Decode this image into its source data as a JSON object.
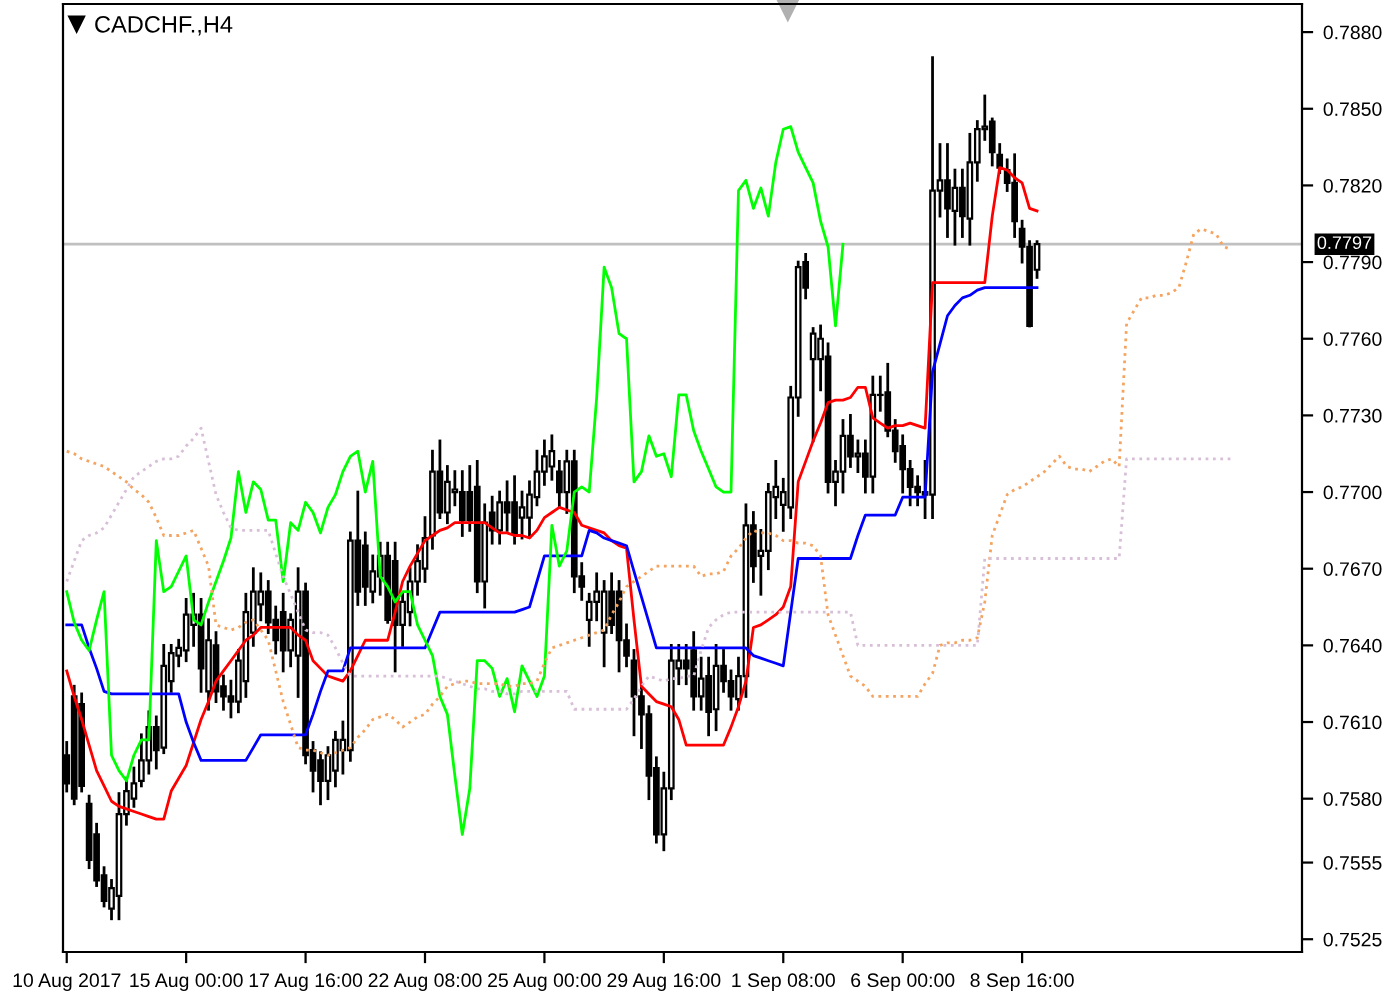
{
  "chart_data": {
    "type": "candlestick",
    "title": "CADCHF.,H4",
    "categories": [
      "10 Aug 2017",
      null,
      null,
      null,
      null,
      null,
      null,
      null,
      null,
      null,
      null,
      null,
      null,
      null,
      null,
      null,
      "15 Aug 00:00",
      null,
      null,
      null,
      null,
      null,
      null,
      null,
      null,
      null,
      null,
      null,
      null,
      null,
      null,
      null,
      "17 Aug 16:00",
      null,
      null,
      null,
      null,
      null,
      null,
      null,
      null,
      null,
      null,
      null,
      null,
      null,
      null,
      null,
      "22 Aug 08:00",
      null,
      null,
      null,
      null,
      null,
      null,
      null,
      null,
      null,
      null,
      null,
      null,
      null,
      null,
      null,
      "25 Aug 00:00",
      null,
      null,
      null,
      null,
      null,
      null,
      null,
      null,
      null,
      null,
      null,
      null,
      null,
      null,
      null,
      "29 Aug 16:00",
      null,
      null,
      null,
      null,
      null,
      null,
      null,
      null,
      null,
      null,
      null,
      null,
      null,
      null,
      null,
      "1 Sep 08:00",
      null,
      null,
      null,
      null,
      null,
      null,
      null,
      null,
      null,
      null,
      null,
      null,
      null,
      null,
      null,
      "6 Sep 00:00",
      null,
      null,
      null,
      null,
      null,
      null,
      null,
      null,
      null,
      null,
      null,
      null,
      null,
      null,
      null,
      "8 Sep 16:00",
      null,
      null,
      null,
      null,
      null,
      null,
      null,
      null,
      null,
      null,
      null,
      null,
      null,
      null,
      null,
      null,
      null,
      null,
      null,
      null,
      null,
      null,
      null,
      null,
      null,
      null,
      null,
      null,
      null,
      null,
      null,
      null,
      null,
      null,
      null,
      null,
      null
    ],
    "ohlc": [
      [
        0.7597,
        0.7602,
        0.7583,
        0.7586
      ],
      [
        0.762,
        0.7624,
        0.7578,
        0.758
      ],
      [
        0.7617,
        0.7621,
        0.7583,
        0.7585
      ],
      [
        0.7578,
        0.7581,
        0.7553,
        0.7556
      ],
      [
        0.7566,
        0.757,
        0.7546,
        0.7548
      ],
      [
        0.755,
        0.7553,
        0.7538,
        0.754
      ],
      [
        0.7537,
        0.7548,
        0.7533,
        0.7545
      ],
      [
        0.7542,
        0.7582,
        0.7533,
        0.7574
      ],
      [
        0.7574,
        0.7588,
        0.757,
        0.7583
      ],
      [
        0.758,
        0.7592,
        0.7577,
        0.7586
      ],
      [
        0.7587,
        0.7605,
        0.7585,
        0.7595
      ],
      [
        0.7595,
        0.7614,
        0.759,
        0.7608
      ],
      [
        0.7608,
        0.7612,
        0.7592,
        0.7599
      ],
      [
        0.76,
        0.764,
        0.7598,
        0.7632
      ],
      [
        0.7626,
        0.764,
        0.7622,
        0.7637
      ],
      [
        0.7636,
        0.7642,
        0.7632,
        0.7639
      ],
      [
        0.7638,
        0.7658,
        0.7634,
        0.7652
      ],
      [
        0.7648,
        0.766,
        0.764,
        0.7652
      ],
      [
        0.7652,
        0.7658,
        0.7622,
        0.7631
      ],
      [
        0.7622,
        0.765,
        0.7615,
        0.7642
      ],
      [
        0.764,
        0.7645,
        0.7618,
        0.7622
      ],
      [
        0.7624,
        0.7628,
        0.7615,
        0.762
      ],
      [
        0.762,
        0.7626,
        0.7612,
        0.7618
      ],
      [
        0.7618,
        0.7638,
        0.7614,
        0.7634
      ],
      [
        0.7626,
        0.766,
        0.762,
        0.7653
      ],
      [
        0.7645,
        0.767,
        0.764,
        0.7661
      ],
      [
        0.7656,
        0.7668,
        0.765,
        0.7661
      ],
      [
        0.7661,
        0.7665,
        0.7645,
        0.7649
      ],
      [
        0.765,
        0.7655,
        0.7637,
        0.7642
      ],
      [
        0.7653,
        0.766,
        0.763,
        0.7638
      ],
      [
        0.7638,
        0.7652,
        0.7632,
        0.765
      ],
      [
        0.7636,
        0.767,
        0.762,
        0.7661
      ],
      [
        0.7661,
        0.7664,
        0.7594,
        0.7597
      ],
      [
        0.7599,
        0.7602,
        0.7583,
        0.7591
      ],
      [
        0.7595,
        0.7598,
        0.7578,
        0.7587
      ],
      [
        0.7587,
        0.76,
        0.758,
        0.7597
      ],
      [
        0.7591,
        0.7606,
        0.7585,
        0.7603
      ],
      [
        0.7599,
        0.761,
        0.759,
        0.7603
      ],
      [
        0.7599,
        0.7684,
        0.7595,
        0.7681
      ],
      [
        0.7681,
        0.77,
        0.7656,
        0.7661
      ],
      [
        0.7679,
        0.7684,
        0.7656,
        0.7663
      ],
      [
        0.7661,
        0.7675,
        0.7657,
        0.7669
      ],
      [
        0.7667,
        0.768,
        0.766,
        0.7675
      ],
      [
        0.7675,
        0.768,
        0.7649,
        0.765
      ],
      [
        0.7673,
        0.768,
        0.763,
        0.7648
      ],
      [
        0.7648,
        0.766,
        0.764,
        0.7657
      ],
      [
        0.7653,
        0.767,
        0.7648,
        0.7665
      ],
      [
        0.7665,
        0.7679,
        0.766,
        0.7673
      ],
      [
        0.767,
        0.769,
        0.7665,
        0.7682
      ],
      [
        0.7683,
        0.7716,
        0.7678,
        0.7708
      ],
      [
        0.7708,
        0.772,
        0.769,
        0.7692
      ],
      [
        0.7692,
        0.771,
        0.7688,
        0.7704
      ],
      [
        0.77,
        0.7708,
        0.7695,
        0.7701
      ],
      [
        0.77,
        0.7708,
        0.7683,
        0.7689
      ],
      [
        0.77,
        0.771,
        0.7685,
        0.7689
      ],
      [
        0.7702,
        0.7712,
        0.7661,
        0.7665
      ],
      [
        0.7665,
        0.7695,
        0.7655,
        0.7688
      ],
      [
        0.7692,
        0.7698,
        0.768,
        0.7685
      ],
      [
        0.7685,
        0.77,
        0.768,
        0.7696
      ],
      [
        0.7696,
        0.7704,
        0.7685,
        0.7692
      ],
      [
        0.7696,
        0.7706,
        0.768,
        0.7684
      ],
      [
        0.769,
        0.77,
        0.7682,
        0.7694
      ],
      [
        0.769,
        0.7704,
        0.7683,
        0.7699
      ],
      [
        0.7698,
        0.7716,
        0.7695,
        0.7708
      ],
      [
        0.7708,
        0.772,
        0.7703,
        0.7714
      ],
      [
        0.771,
        0.7722,
        0.7705,
        0.7716
      ],
      [
        0.7708,
        0.7712,
        0.7694,
        0.77
      ],
      [
        0.77,
        0.7716,
        0.7692,
        0.7712
      ],
      [
        0.7712,
        0.7716,
        0.7661,
        0.7667
      ],
      [
        0.7667,
        0.7672,
        0.7658,
        0.7663
      ],
      [
        0.765,
        0.766,
        0.764,
        0.7657
      ],
      [
        0.7657,
        0.7668,
        0.765,
        0.7661
      ],
      [
        0.7645,
        0.7665,
        0.7632,
        0.7661
      ],
      [
        0.7661,
        0.7668,
        0.7645,
        0.7648
      ],
      [
        0.7661,
        0.7665,
        0.763,
        0.7642
      ],
      [
        0.7642,
        0.7648,
        0.7632,
        0.7636
      ],
      [
        0.7634,
        0.7638,
        0.7605,
        0.762
      ],
      [
        0.762,
        0.7625,
        0.76,
        0.7613
      ],
      [
        0.7613,
        0.7616,
        0.758,
        0.7589
      ],
      [
        0.7592,
        0.7596,
        0.7563,
        0.7566
      ],
      [
        0.7566,
        0.759,
        0.756,
        0.7584
      ],
      [
        0.7584,
        0.764,
        0.758,
        0.7634
      ],
      [
        0.7631,
        0.764,
        0.7625,
        0.7634
      ],
      [
        0.7634,
        0.764,
        0.7625,
        0.7631
      ],
      [
        0.7638,
        0.7645,
        0.7615,
        0.762
      ],
      [
        0.762,
        0.7635,
        0.7615,
        0.7627
      ],
      [
        0.7628,
        0.7635,
        0.7605,
        0.7614
      ],
      [
        0.7615,
        0.764,
        0.7607,
        0.7632
      ],
      [
        0.7632,
        0.7638,
        0.7622,
        0.7626
      ],
      [
        0.7626,
        0.763,
        0.7615,
        0.762
      ],
      [
        0.7619,
        0.7635,
        0.7615,
        0.7628
      ],
      [
        0.7628,
        0.7695,
        0.762,
        0.7687
      ],
      [
        0.7687,
        0.7692,
        0.7665,
        0.7671
      ],
      [
        0.7675,
        0.7685,
        0.766,
        0.7677
      ],
      [
        0.7677,
        0.7703,
        0.767,
        0.77
      ],
      [
        0.7698,
        0.7712,
        0.769,
        0.7702
      ],
      [
        0.7695,
        0.7705,
        0.7685,
        0.77
      ],
      [
        0.7694,
        0.7741,
        0.769,
        0.7737
      ],
      [
        0.7737,
        0.779,
        0.773,
        0.7788
      ],
      [
        0.779,
        0.7793,
        0.7776,
        0.778
      ],
      [
        0.7752,
        0.7764,
        0.772,
        0.7762
      ],
      [
        0.7752,
        0.7765,
        0.774,
        0.776
      ],
      [
        0.7753,
        0.7758,
        0.77,
        0.7704
      ],
      [
        0.7704,
        0.7712,
        0.7695,
        0.7708
      ],
      [
        0.7708,
        0.7728,
        0.77,
        0.7722
      ],
      [
        0.7722,
        0.773,
        0.771,
        0.7714
      ],
      [
        0.7714,
        0.772,
        0.7708,
        0.7715
      ],
      [
        0.7715,
        0.772,
        0.77,
        0.7706
      ],
      [
        0.7706,
        0.7745,
        0.77,
        0.7738
      ],
      [
        0.7738,
        0.7745,
        0.7732,
        0.7738
      ],
      [
        0.7739,
        0.775,
        0.7722,
        0.7724
      ],
      [
        0.7724,
        0.7728,
        0.7712,
        0.7716
      ],
      [
        0.7718,
        0.7722,
        0.77,
        0.7709
      ],
      [
        0.7709,
        0.7712,
        0.7695,
        0.7702
      ],
      [
        0.7702,
        0.7706,
        0.7695,
        0.77
      ],
      [
        0.7699,
        0.7712,
        0.769,
        0.77
      ],
      [
        0.7699,
        0.787,
        0.769,
        0.7818
      ],
      [
        0.7818,
        0.7836,
        0.7808,
        0.7822
      ],
      [
        0.7822,
        0.7836,
        0.78,
        0.7811
      ],
      [
        0.781,
        0.7826,
        0.7797,
        0.7819
      ],
      [
        0.7819,
        0.7826,
        0.78,
        0.7808
      ],
      [
        0.7807,
        0.784,
        0.7797,
        0.7829
      ],
      [
        0.7829,
        0.7845,
        0.7822,
        0.7842
      ],
      [
        0.7842,
        0.7855,
        0.7838,
        0.7843
      ],
      [
        0.7845,
        0.7846,
        0.7828,
        0.7833
      ],
      [
        0.7832,
        0.7836,
        0.7825,
        0.7827
      ],
      [
        0.7826,
        0.783,
        0.7818,
        0.7821
      ],
      [
        0.7821,
        0.7832,
        0.78,
        0.7806
      ],
      [
        0.7803,
        0.7806,
        0.779,
        0.7796
      ],
      [
        0.7796,
        0.7798,
        0.7765,
        0.7765
      ],
      [
        0.7787,
        0.7798,
        0.7784,
        0.7797
      ],
      null,
      null,
      null,
      null,
      null,
      null,
      null,
      null,
      null,
      null,
      null,
      null,
      null,
      null,
      null,
      null,
      null,
      null,
      null,
      null,
      null,
      null,
      null,
      null,
      null,
      null,
      null,
      null,
      null,
      null,
      null,
      null,
      null,
      null,
      null
    ],
    "series": [
      {
        "type": "line",
        "color": "#ff0000",
        "line_style": "solid",
        "values": [
          0.763,
          0.762,
          0.7611,
          0.7601,
          0.7591,
          0.7585,
          0.7579,
          0.7577,
          0.7576,
          0.7575,
          0.7574,
          0.7573,
          0.7572,
          0.7572,
          0.7583,
          0.7588,
          0.7593,
          0.7602,
          0.7611,
          0.7618,
          0.7626,
          0.763,
          0.7634,
          0.7638,
          0.7642,
          0.7644,
          0.7647,
          0.7647,
          0.7647,
          0.7647,
          0.7647,
          0.7644,
          0.7642,
          0.7634,
          0.7631,
          0.7628,
          0.7627,
          0.7626,
          0.763,
          0.7636,
          0.7642,
          0.7642,
          0.7642,
          0.7642,
          0.7653,
          0.7665,
          0.7671,
          0.7676,
          0.7681,
          0.7683,
          0.7685,
          0.7686,
          0.7688,
          0.7688,
          0.7688,
          0.7688,
          0.7688,
          0.7686,
          0.7684,
          0.7684,
          0.7683,
          0.7683,
          0.7682,
          0.7685,
          0.769,
          0.7692,
          0.7694,
          0.7693,
          0.7692,
          0.7687,
          0.7686,
          0.7685,
          0.7684,
          0.7681,
          0.7679,
          0.7678,
          0.765,
          0.7624,
          0.7621,
          0.7618,
          0.7617,
          0.7616,
          0.7611,
          0.7601,
          0.7601,
          0.7601,
          0.7601,
          0.7601,
          0.7601,
          0.7608,
          0.7616,
          0.7626,
          0.7647,
          0.7648,
          0.765,
          0.7652,
          0.7655,
          0.7663,
          0.7704,
          0.7712,
          0.772,
          0.7727,
          0.7735,
          0.7736,
          0.7736,
          0.7737,
          0.7741,
          0.7741,
          0.7729,
          0.7727,
          0.7725,
          0.7726,
          0.7726,
          0.7727,
          0.7726,
          0.7725,
          0.7782,
          0.7782,
          0.7782,
          0.7782,
          0.7782,
          0.7782,
          0.7782,
          0.7782,
          0.7808,
          0.7827,
          0.7826,
          0.7823,
          0.7821,
          0.7811,
          0.781,
          null,
          null,
          null,
          null,
          null,
          null,
          null,
          null,
          null,
          null,
          null,
          null,
          null,
          null,
          null,
          null,
          null,
          null,
          null,
          null,
          null,
          null,
          null,
          null,
          null,
          null,
          null,
          null,
          null,
          null,
          null,
          null,
          null,
          null,
          null
        ]
      },
      {
        "type": "line",
        "color": "#0000ff",
        "line_style": "solid",
        "values": [
          0.7648,
          0.7648,
          0.7648,
          0.7639,
          0.7631,
          0.7622,
          0.7621,
          0.7621,
          0.7621,
          0.7621,
          0.7621,
          0.7621,
          0.7621,
          0.7621,
          0.7621,
          0.7621,
          0.761,
          0.7602,
          0.7595,
          0.7595,
          0.7595,
          0.7595,
          0.7595,
          0.7595,
          0.7595,
          0.76,
          0.7605,
          0.7605,
          0.7605,
          0.7605,
          0.7605,
          0.7605,
          0.7605,
          0.7613,
          0.7622,
          0.763,
          0.763,
          0.763,
          0.7639,
          0.7639,
          0.7639,
          0.7639,
          0.7639,
          0.7639,
          0.7639,
          0.7639,
          0.7639,
          0.7639,
          0.7639,
          0.7646,
          0.7653,
          0.7653,
          0.7653,
          0.7653,
          0.7653,
          0.7653,
          0.7653,
          0.7653,
          0.7653,
          0.7653,
          0.7653,
          0.7654,
          0.7655,
          0.7665,
          0.7675,
          0.7675,
          0.7675,
          0.7675,
          0.7675,
          0.7675,
          0.7685,
          0.7684,
          0.7682,
          0.7681,
          0.768,
          0.7679,
          0.7669,
          0.7659,
          0.7649,
          0.7639,
          0.7639,
          0.7639,
          0.7639,
          0.7639,
          0.7639,
          0.7639,
          0.7639,
          0.7639,
          0.7639,
          0.7639,
          0.7639,
          0.7639,
          0.7636,
          0.7635,
          0.7634,
          0.7633,
          0.7632,
          0.7653,
          0.7674,
          0.7674,
          0.7674,
          0.7674,
          0.7674,
          0.7674,
          0.7674,
          0.7674,
          0.7683,
          0.7691,
          0.7691,
          0.7691,
          0.7691,
          0.7691,
          0.7698,
          0.7698,
          0.7698,
          0.7698,
          0.7747,
          0.7758,
          0.7769,
          0.7773,
          0.7776,
          0.7777,
          0.7779,
          0.778,
          0.778,
          0.778,
          0.778,
          0.778,
          0.778,
          0.778,
          0.778,
          null,
          null,
          null,
          null,
          null,
          null,
          null,
          null,
          null,
          null,
          null,
          null,
          null,
          null,
          null,
          null,
          null,
          null,
          null,
          null,
          null,
          null,
          null,
          null,
          null,
          null,
          null,
          null,
          null,
          null,
          null,
          null,
          null,
          null,
          null
        ]
      },
      {
        "type": "line",
        "color": "#00ff00",
        "line_style": "solid",
        "values": [
          0.7661,
          0.7649,
          0.7642,
          0.7638,
          0.765,
          0.7661,
          0.7597,
          0.7591,
          0.7587,
          0.7597,
          0.7603,
          0.7603,
          0.7681,
          0.7661,
          0.7663,
          0.7669,
          0.7675,
          0.765,
          0.7648,
          0.7657,
          0.7665,
          0.7673,
          0.7682,
          0.7708,
          0.7692,
          0.7704,
          0.7701,
          0.7689,
          0.7689,
          0.7665,
          0.7688,
          0.7685,
          0.7696,
          0.7692,
          0.7684,
          0.7694,
          0.7699,
          0.7708,
          0.7714,
          0.7716,
          0.77,
          0.7712,
          0.7667,
          0.7663,
          0.7657,
          0.7661,
          0.7661,
          0.7648,
          0.7642,
          0.7636,
          0.762,
          0.7613,
          0.7589,
          0.7566,
          0.7584,
          0.7634,
          0.7634,
          0.7631,
          0.762,
          0.7627,
          0.7614,
          0.7632,
          0.7626,
          0.762,
          0.7628,
          0.7687,
          0.7671,
          0.7677,
          0.77,
          0.7702,
          0.77,
          0.7737,
          0.7788,
          0.778,
          0.7762,
          0.776,
          0.7704,
          0.7708,
          0.7722,
          0.7714,
          0.7715,
          0.7706,
          0.7738,
          0.7738,
          0.7724,
          0.7716,
          0.7709,
          0.7702,
          0.77,
          0.77,
          0.7818,
          0.7822,
          0.7811,
          0.7819,
          0.7808,
          0.7829,
          0.7842,
          0.7843,
          0.7833,
          0.7827,
          0.7821,
          0.7806,
          0.7796,
          0.7765,
          0.7797,
          null,
          null,
          null,
          null,
          null,
          null,
          null,
          null,
          null,
          null,
          null,
          null,
          null,
          null,
          null,
          null,
          null,
          null,
          null,
          null,
          null,
          null,
          null,
          null,
          null,
          null,
          null,
          null,
          null,
          null,
          null,
          null,
          null,
          null,
          null,
          null,
          null,
          null,
          null,
          null,
          null,
          null,
          null,
          null,
          null,
          null,
          null,
          null,
          null,
          null,
          null,
          null,
          null,
          null,
          null,
          null,
          null,
          null,
          null,
          null,
          null
        ]
      },
      {
        "type": "line",
        "color": "#f4a460",
        "line_style": "dotted",
        "values": [
          0.7716,
          0.7715,
          0.7713,
          0.7712,
          0.7711,
          0.771,
          0.7708,
          0.7706,
          0.7704,
          0.7701,
          0.7699,
          0.7696,
          0.769,
          0.7683,
          0.7683,
          0.7683,
          0.7684,
          0.7685,
          0.7678,
          0.7671,
          0.7648,
          0.7647,
          0.7646,
          0.7647,
          0.7649,
          0.765,
          0.7646,
          0.7642,
          0.763,
          0.7618,
          0.7609,
          0.76,
          0.7599,
          0.7599,
          0.7598,
          0.7597,
          0.7598,
          0.7599,
          0.76,
          0.7604,
          0.7607,
          0.7611,
          0.7612,
          0.7613,
          0.7611,
          0.7608,
          0.761,
          0.7612,
          0.7613,
          0.7617,
          0.762,
          0.7624,
          0.7625,
          0.7626,
          0.7626,
          0.7625,
          0.7625,
          0.7625,
          0.7625,
          0.7624,
          0.7624,
          0.7625,
          0.7625,
          0.7626,
          0.7633,
          0.7639,
          0.764,
          0.7641,
          0.7642,
          0.7643,
          0.7644,
          0.7645,
          0.7646,
          0.7652,
          0.7657,
          0.7663,
          0.7665,
          0.7667,
          0.7669,
          0.7671,
          0.7671,
          0.7671,
          0.7671,
          0.7671,
          0.7671,
          0.7667,
          0.7668,
          0.7668,
          0.7669,
          0.7675,
          0.7678,
          0.7682,
          0.7685,
          0.7684,
          0.7684,
          0.7683,
          0.7681,
          0.7681,
          0.768,
          0.768,
          0.7679,
          0.7675,
          0.7652,
          0.7644,
          0.7636,
          0.7628,
          0.7626,
          0.7624,
          0.762,
          0.762,
          0.762,
          0.762,
          0.762,
          0.762,
          0.762,
          0.7625,
          0.7629,
          0.764,
          0.7641,
          0.7641,
          0.7642,
          0.7642,
          0.7643,
          0.7657,
          0.7683,
          0.7691,
          0.7699,
          0.7701,
          0.7702,
          0.7704,
          0.7706,
          0.7708,
          0.7711,
          0.7714,
          0.771,
          0.7709,
          0.7709,
          0.7708,
          0.771,
          0.7712,
          0.7713,
          0.771,
          0.7766,
          0.7771,
          0.7776,
          0.7776,
          0.7777,
          0.7777,
          0.7778,
          0.778,
          0.779,
          0.7801,
          0.7803,
          0.7802,
          0.7801,
          0.7796,
          0.7795,
          null,
          null,
          null,
          null,
          null,
          null,
          null,
          null,
          null
        ]
      },
      {
        "type": "line",
        "color": "#d8bfd8",
        "line_style": "dotted",
        "values": [
          0.7665,
          0.7673,
          0.7681,
          0.7683,
          0.7684,
          0.7686,
          0.7691,
          0.7696,
          0.7701,
          0.7706,
          0.7708,
          0.771,
          0.7712,
          0.7713,
          0.7713,
          0.7714,
          0.7718,
          0.7721,
          0.7725,
          0.7712,
          0.7699,
          0.7692,
          0.7686,
          0.7685,
          0.7685,
          0.7685,
          0.7685,
          0.7685,
          0.7676,
          0.7667,
          0.766,
          0.7653,
          0.7646,
          0.7645,
          0.7645,
          0.7644,
          0.7639,
          0.7633,
          0.7628,
          0.7628,
          0.7628,
          0.7628,
          0.7628,
          0.7628,
          0.7628,
          0.7628,
          0.7628,
          0.7628,
          0.7628,
          0.7628,
          0.7628,
          0.7627,
          0.7626,
          0.7625,
          0.7624,
          0.7623,
          0.7623,
          0.7622,
          0.7622,
          0.7621,
          0.7621,
          0.7622,
          0.7622,
          0.7622,
          0.7622,
          0.7622,
          0.7622,
          0.7622,
          0.7615,
          0.7615,
          0.7615,
          0.7615,
          0.7615,
          0.7615,
          0.7615,
          0.7615,
          0.7619,
          0.7624,
          0.7628,
          0.7627,
          0.7626,
          0.7627,
          0.7627,
          0.7628,
          0.7628,
          0.7638,
          0.7647,
          0.765,
          0.7652,
          0.7653,
          0.7653,
          0.7653,
          0.7653,
          0.7653,
          0.7653,
          0.7653,
          0.7653,
          0.7653,
          0.7653,
          0.7653,
          0.7653,
          0.7653,
          0.7653,
          0.7653,
          0.7653,
          0.7653,
          0.764,
          0.764,
          0.764,
          0.764,
          0.764,
          0.764,
          0.764,
          0.764,
          0.764,
          0.764,
          0.764,
          0.764,
          0.764,
          0.764,
          0.764,
          0.764,
          0.764,
          0.7674,
          0.7674,
          0.7674,
          0.7674,
          0.7674,
          0.7674,
          0.7674,
          0.7674,
          0.7674,
          0.7674,
          0.7674,
          0.7674,
          0.7674,
          0.7674,
          0.7674,
          0.7674,
          0.7674,
          0.7674,
          0.7674,
          0.7713,
          0.7713,
          0.7713,
          0.7713,
          0.7713,
          0.7713,
          0.7713,
          0.7713,
          0.7713,
          0.7713,
          0.7713,
          0.7713,
          0.7713,
          0.7713,
          0.7713,
          null,
          null,
          null,
          null,
          null,
          null,
          null,
          null,
          null
        ]
      }
    ],
    "ylim": [
      0.752,
      0.7891
    ],
    "yticks": [
      {
        "value": 0.788,
        "label": "0.7880"
      },
      {
        "value": 0.785,
        "label": "0.7850"
      },
      {
        "value": 0.782,
        "label": "0.7820"
      },
      {
        "value": 0.779,
        "label": "0.7790"
      },
      {
        "value": 0.776,
        "label": "0.7760"
      },
      {
        "value": 0.773,
        "label": "0.7730"
      },
      {
        "value": 0.77,
        "label": "0.7700"
      },
      {
        "value": 0.767,
        "label": "0.7670"
      },
      {
        "value": 0.764,
        "label": "0.7640"
      },
      {
        "value": 0.761,
        "label": "0.7610"
      },
      {
        "value": 0.758,
        "label": "0.7580"
      },
      {
        "value": 0.7555,
        "label": "0.7555"
      },
      {
        "value": 0.7525,
        "label": "0.7525"
      }
    ],
    "ref_lines": [
      {
        "axis": "y",
        "value": 0.7797,
        "label": "0.7797",
        "color": "#c0c0c0"
      }
    ]
  }
}
